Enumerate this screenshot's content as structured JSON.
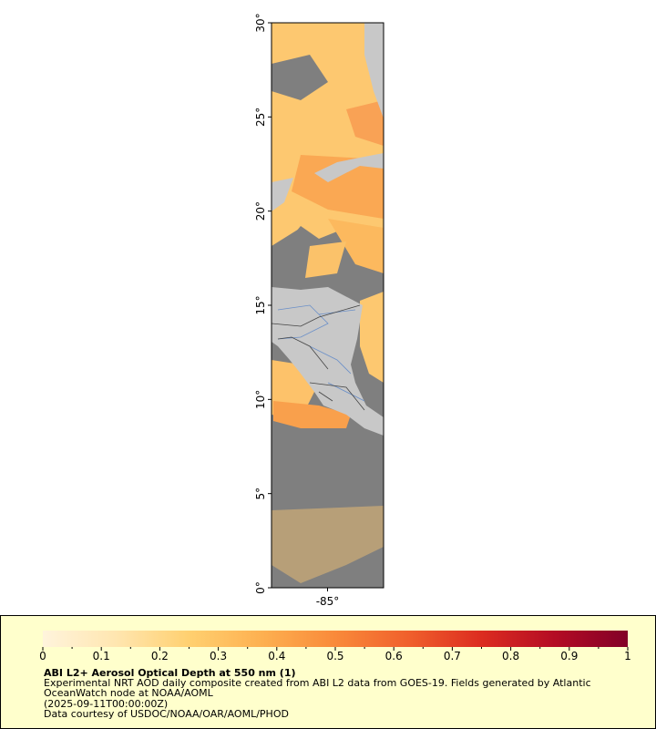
{
  "map": {
    "xlim": [
      -88,
      -82
    ],
    "ylim": [
      0,
      30
    ],
    "yticks": [
      {
        "value": 0,
        "label": "0°"
      },
      {
        "value": 5,
        "label": "5°"
      },
      {
        "value": 10,
        "label": "10°"
      },
      {
        "value": 15,
        "label": "15°"
      },
      {
        "value": 20,
        "label": "20°"
      },
      {
        "value": 25,
        "label": "25°"
      },
      {
        "value": 30,
        "label": "30°"
      }
    ],
    "xticks": [
      {
        "value": -85,
        "label": "-85°"
      }
    ],
    "colorbar": {
      "range": [
        0,
        1
      ],
      "ticks": [
        0,
        0.1,
        0.2,
        0.3,
        0.4,
        0.5,
        0.6,
        0.7,
        0.8,
        0.9,
        1
      ],
      "colors": [
        "#fff4dc",
        "#ffe6b0",
        "#ffd070",
        "#fdb050",
        "#f98a3a",
        "#f0602c",
        "#dc2c20",
        "#b40c24",
        "#820028"
      ]
    },
    "title": "ABI L2+ Aerosol Optical Depth at 550 nm (1)",
    "description": [
      "Experimental NRT AOD daily composite created from ABI L2 data from GOES-19. Fields generated by Atlantic",
      "OceanWatch node at NOAA/AOML",
      "(2025-09-11T00:00:00Z)",
      "Data courtesy of USDOC/NOAA/OAR/AOML/PHOD"
    ]
  }
}
